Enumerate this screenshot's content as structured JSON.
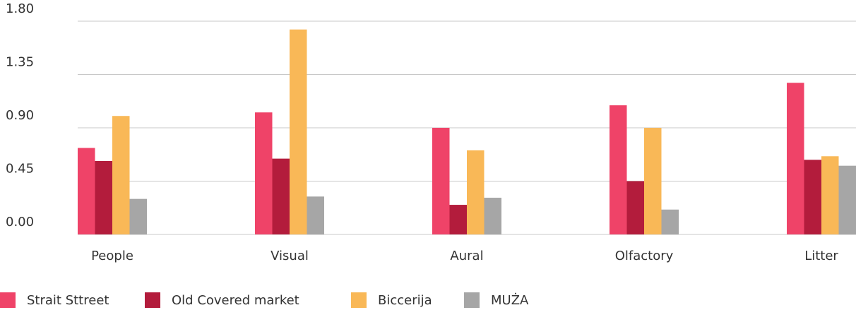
{
  "chart_data": {
    "type": "bar",
    "categories": [
      "People",
      "Visual",
      "Aural",
      "Olfactory",
      "Litter"
    ],
    "series": [
      {
        "name": "Strait Sttreet",
        "color": "#ef4368",
        "values": [
          0.73,
          1.03,
          0.9,
          1.09,
          1.28
        ]
      },
      {
        "name": "Old Covered market",
        "color": "#b31c3c",
        "values": [
          0.62,
          0.64,
          0.25,
          0.45,
          0.63
        ]
      },
      {
        "name": "Biccerija",
        "color": "#f9b857",
        "values": [
          1.0,
          1.73,
          0.71,
          0.9,
          0.66
        ]
      },
      {
        "name": "MUŻA",
        "color": "#a6a6a6",
        "values": [
          0.3,
          0.32,
          0.31,
          0.21,
          0.58
        ]
      }
    ],
    "ylim": [
      0,
      1.8
    ],
    "yticks": [
      {
        "value": 0,
        "label": "0.00"
      },
      {
        "value": 0.45,
        "label": "0.45"
      },
      {
        "value": 0.9,
        "label": "0.90"
      },
      {
        "value": 1.35,
        "label": "1.35"
      },
      {
        "value": 1.8,
        "label": "1.80"
      }
    ],
    "grid": true
  }
}
